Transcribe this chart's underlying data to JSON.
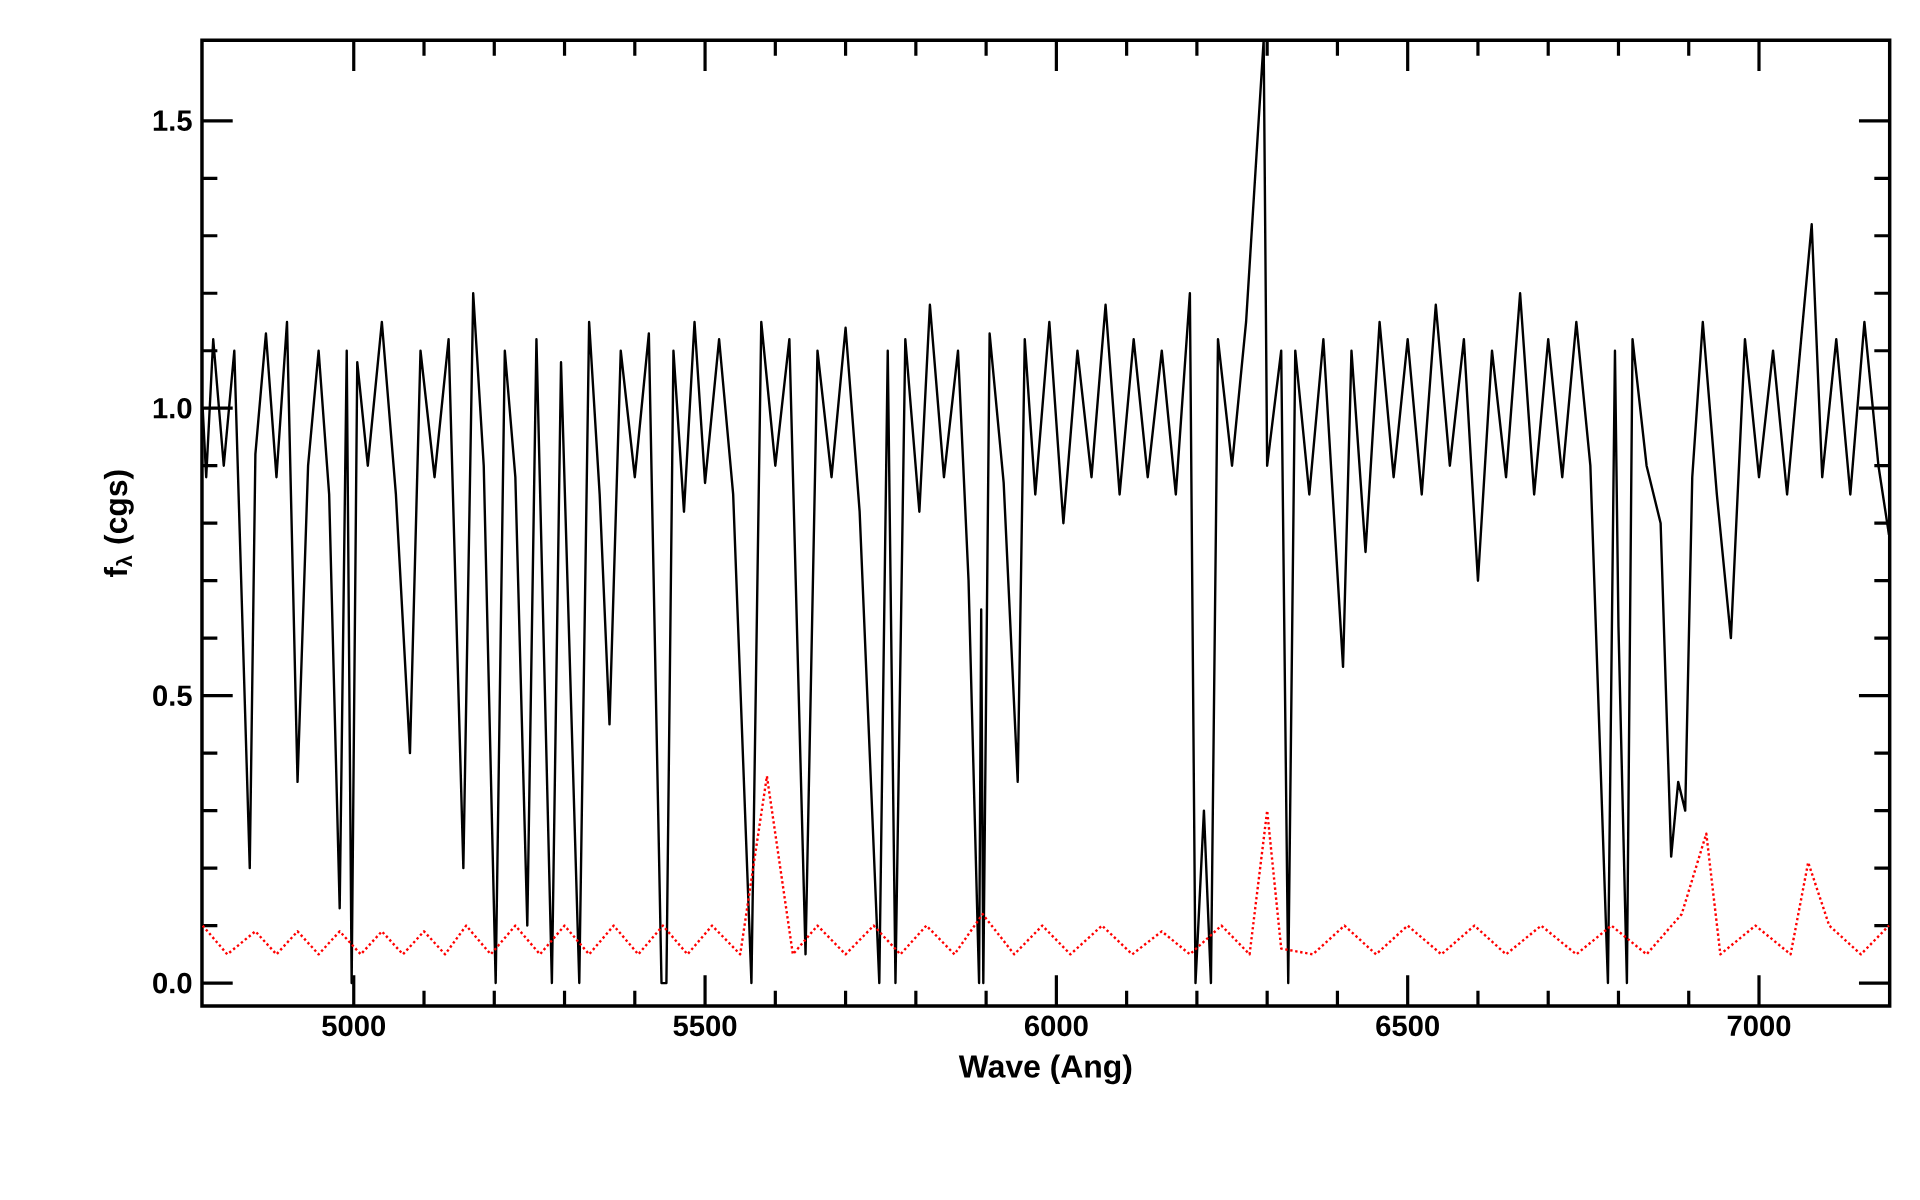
{
  "chart_data": {
    "type": "line",
    "xlabel": "Wave (Ang)",
    "ylabel": "f$_{λ}$ (cgs)",
    "xlim": [
      4784,
      7186
    ],
    "ylim": [
      -0.04,
      1.64
    ],
    "xticks": [
      5000,
      5500,
      6000,
      6500,
      7000
    ],
    "yticks": [
      {
        "value": 0,
        "label": "0.0"
      },
      0.5,
      {
        "value": 1,
        "label": "1.0"
      },
      1.5
    ],
    "series": [
      {
        "color": "#000000",
        "line_style": "solid",
        "x": [
          4785,
          4790,
          4800,
          4815,
          4830,
          4852,
          4860,
          4875,
          4890,
          4905,
          4920,
          4935,
          4950,
          4965,
          4980,
          4990,
          4997,
          5005,
          5020,
          5040,
          5060,
          5080,
          5095,
          5115,
          5135,
          5156,
          5170,
          5185,
          5202,
          5215,
          5230,
          5247,
          5260,
          5282,
          5295,
          5321,
          5335,
          5350,
          5364,
          5380,
          5400,
          5420,
          5438,
          5445,
          5455,
          5470,
          5485,
          5500,
          5520,
          5540,
          5566,
          5580,
          5600,
          5620,
          5643,
          5660,
          5680,
          5700,
          5720,
          5748,
          5760,
          5771,
          5785,
          5805,
          5820,
          5840,
          5860,
          5875,
          5890,
          5893,
          5896,
          5905,
          5925,
          5945,
          5955,
          5970,
          5990,
          6010,
          6030,
          6050,
          6070,
          6090,
          6110,
          6130,
          6150,
          6170,
          6190,
          6198,
          6210,
          6220,
          6230,
          6250,
          6270,
          6295,
          6300,
          6320,
          6330,
          6340,
          6360,
          6380,
          6408,
          6420,
          6440,
          6460,
          6480,
          6500,
          6520,
          6540,
          6560,
          6580,
          6600,
          6620,
          6640,
          6660,
          6680,
          6700,
          6720,
          6740,
          6760,
          6785,
          6795,
          6800,
          6812,
          6820,
          6840,
          6860,
          6875,
          6885,
          6895,
          6905,
          6920,
          6940,
          6960,
          6980,
          7000,
          7020,
          7040,
          7060,
          7075,
          7090,
          7110,
          7130,
          7150,
          7170,
          7185
        ],
        "values": [
          1.0,
          0.88,
          1.12,
          0.9,
          1.1,
          0.2,
          0.92,
          1.13,
          0.88,
          1.15,
          0.35,
          0.9,
          1.1,
          0.85,
          0.13,
          1.1,
          0.0,
          1.08,
          0.9,
          1.15,
          0.85,
          0.4,
          1.1,
          0.88,
          1.12,
          0.2,
          1.2,
          0.9,
          0.0,
          1.1,
          0.88,
          0.1,
          1.12,
          0.0,
          1.08,
          0.0,
          1.15,
          0.85,
          0.45,
          1.1,
          0.88,
          1.13,
          0.0,
          0.0,
          1.1,
          0.82,
          1.15,
          0.87,
          1.12,
          0.85,
          0.0,
          1.15,
          0.9,
          1.12,
          0.05,
          1.1,
          0.88,
          1.14,
          0.82,
          0.0,
          1.1,
          0.0,
          1.12,
          0.82,
          1.18,
          0.88,
          1.1,
          0.7,
          0.0,
          0.65,
          0.0,
          1.13,
          0.87,
          0.35,
          1.12,
          0.85,
          1.15,
          0.8,
          1.1,
          0.88,
          1.18,
          0.85,
          1.12,
          0.88,
          1.1,
          0.85,
          1.2,
          0.0,
          0.3,
          0.0,
          1.12,
          0.9,
          1.15,
          1.64,
          0.9,
          1.1,
          0.0,
          1.1,
          0.85,
          1.12,
          0.55,
          1.1,
          0.75,
          1.15,
          0.88,
          1.12,
          0.85,
          1.18,
          0.9,
          1.12,
          0.7,
          1.1,
          0.88,
          1.2,
          0.85,
          1.12,
          0.88,
          1.15,
          0.9,
          0.0,
          1.1,
          0.62,
          0.0,
          1.12,
          0.9,
          0.8,
          0.22,
          0.35,
          0.3,
          0.88,
          1.15,
          0.85,
          0.6,
          1.12,
          0.88,
          1.1,
          0.85,
          1.12,
          1.32,
          0.88,
          1.12,
          0.85,
          1.15,
          0.9,
          0.78
        ]
      },
      {
        "color": "#ff0000",
        "line_style": "dotted",
        "x": [
          4785,
          4820,
          4860,
          4890,
          4920,
          4950,
          4980,
          5010,
          5040,
          5070,
          5100,
          5130,
          5160,
          5195,
          5230,
          5265,
          5300,
          5335,
          5370,
          5405,
          5440,
          5475,
          5510,
          5550,
          5588,
          5625,
          5660,
          5700,
          5740,
          5778,
          5815,
          5855,
          5895,
          5940,
          5980,
          6020,
          6065,
          6108,
          6150,
          6190,
          6235,
          6275,
          6300,
          6320,
          6365,
          6410,
          6455,
          6500,
          6548,
          6595,
          6640,
          6690,
          6740,
          6790,
          6840,
          6890,
          6925,
          6945,
          6995,
          7045,
          7070,
          7100,
          7145,
          7185
        ],
        "values": [
          0.1,
          0.05,
          0.09,
          0.05,
          0.09,
          0.05,
          0.09,
          0.05,
          0.09,
          0.05,
          0.09,
          0.05,
          0.1,
          0.05,
          0.1,
          0.05,
          0.1,
          0.05,
          0.1,
          0.05,
          0.1,
          0.05,
          0.1,
          0.05,
          0.36,
          0.05,
          0.1,
          0.05,
          0.1,
          0.05,
          0.1,
          0.05,
          0.12,
          0.05,
          0.1,
          0.05,
          0.1,
          0.05,
          0.09,
          0.05,
          0.1,
          0.05,
          0.3,
          0.06,
          0.05,
          0.1,
          0.05,
          0.1,
          0.05,
          0.1,
          0.05,
          0.1,
          0.05,
          0.1,
          0.05,
          0.12,
          0.26,
          0.05,
          0.1,
          0.05,
          0.21,
          0.1,
          0.05,
          0.1
        ]
      }
    ]
  }
}
